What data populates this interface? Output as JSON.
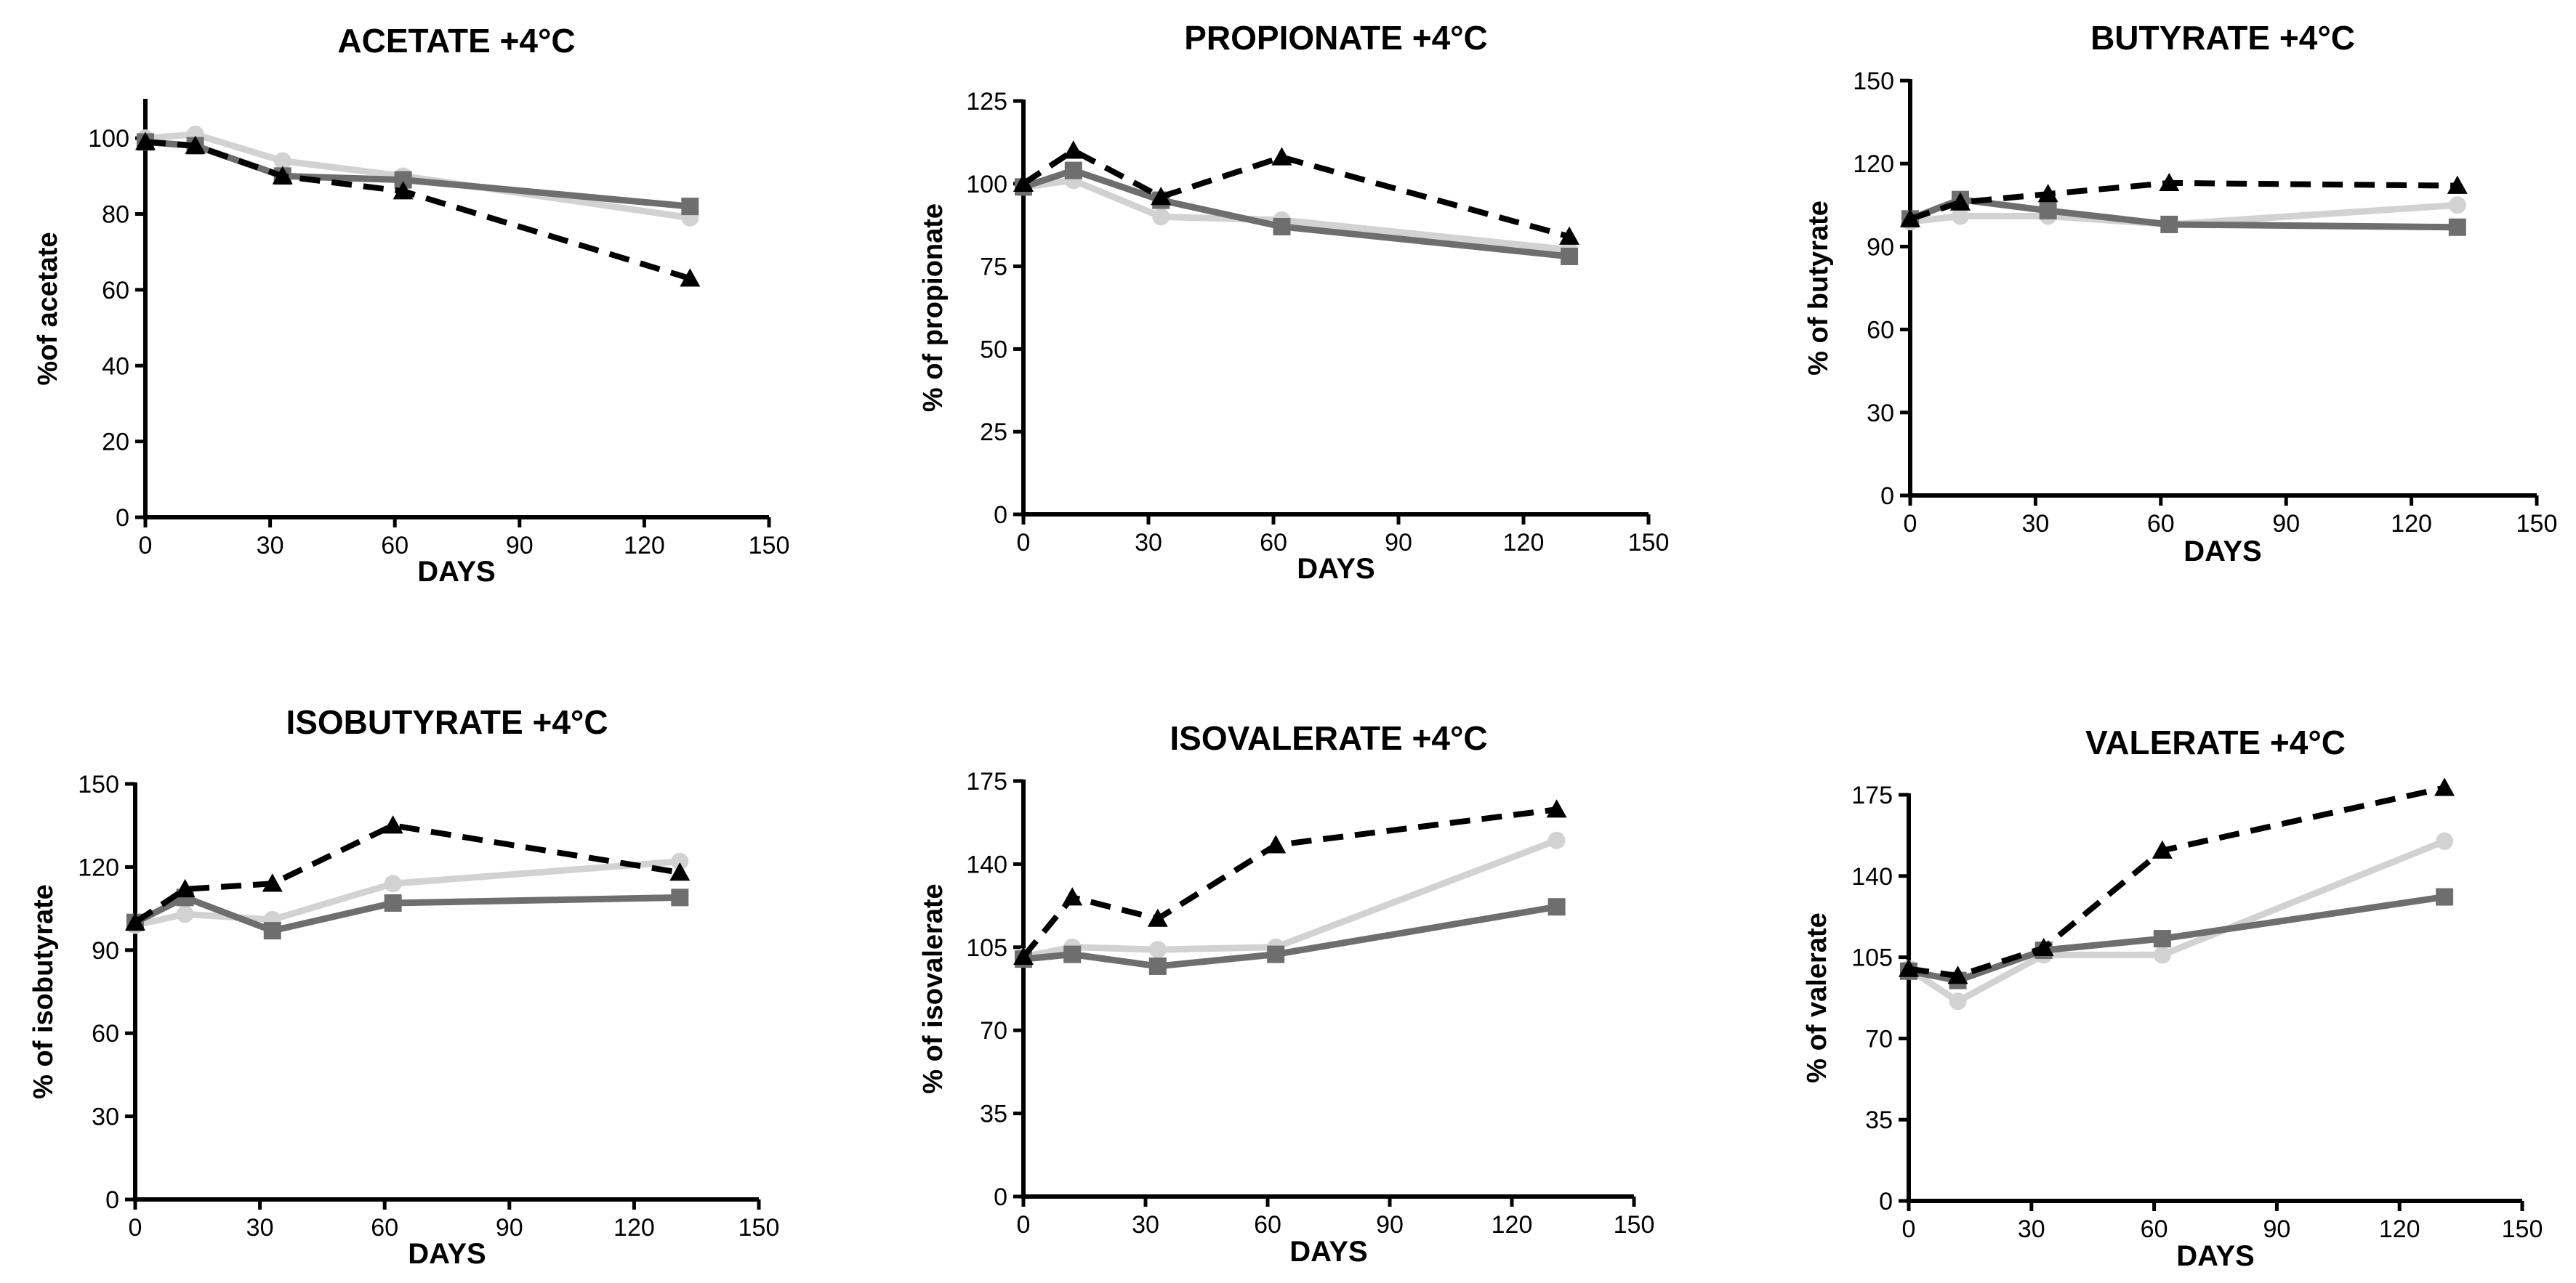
{
  "chart_data": [
    {
      "type": "line",
      "title": "ACETATE +4°C",
      "xlabel": "DAYS",
      "ylabel": "%of acetate",
      "xlim": [
        0,
        150
      ],
      "xticks": [
        0,
        30,
        60,
        90,
        120,
        150
      ],
      "ylim": [
        0,
        110
      ],
      "yticks": [
        0,
        20,
        40,
        60,
        80,
        100
      ],
      "series": [
        {
          "name": "triangle-dashed",
          "color": "#000000",
          "x": [
            0,
            12,
            33,
            62,
            131
          ],
          "values": [
            99,
            98,
            90,
            86,
            63
          ]
        },
        {
          "name": "square-dark-gray",
          "color": "#6e6e6e",
          "x": [
            0,
            12,
            33,
            62,
            131
          ],
          "values": [
            99,
            98,
            90,
            89,
            82
          ]
        },
        {
          "name": "circle-light-gray",
          "color": "#d2d2d2",
          "x": [
            0,
            12,
            33,
            62,
            131
          ],
          "values": [
            100,
            101,
            94,
            90,
            79
          ]
        }
      ]
    },
    {
      "type": "line",
      "title": "PROPIONATE +4°C",
      "xlabel": "DAYS",
      "ylabel": "% of propionate",
      "xlim": [
        0,
        150
      ],
      "xticks": [
        0,
        30,
        60,
        90,
        120,
        150
      ],
      "ylim": [
        0,
        125
      ],
      "yticks": [
        0,
        25,
        50,
        75,
        100,
        125
      ],
      "series": [
        {
          "name": "triangle-dashed",
          "color": "#000000",
          "x": [
            0,
            12,
            33,
            62,
            131
          ],
          "values": [
            100,
            110,
            96,
            108,
            84
          ]
        },
        {
          "name": "square-dark-gray",
          "color": "#6e6e6e",
          "x": [
            0,
            12,
            33,
            62,
            131
          ],
          "values": [
            99,
            104,
            95,
            87,
            78
          ]
        },
        {
          "name": "circle-light-gray",
          "color": "#d2d2d2",
          "x": [
            0,
            12,
            33,
            62,
            131
          ],
          "values": [
            99,
            101,
            90,
            89,
            80
          ]
        }
      ]
    },
    {
      "type": "line",
      "title": "BUTYRATE +4°C",
      "xlabel": "DAYS",
      "ylabel": "% of butyrate",
      "xlim": [
        0,
        150
      ],
      "xticks": [
        0,
        30,
        60,
        90,
        120,
        150
      ],
      "ylim": [
        0,
        150
      ],
      "yticks": [
        0,
        30,
        60,
        90,
        120,
        150
      ],
      "series": [
        {
          "name": "triangle-dashed",
          "color": "#000000",
          "x": [
            0,
            12,
            33,
            62,
            131
          ],
          "values": [
            100,
            106,
            109,
            113,
            112
          ]
        },
        {
          "name": "square-dark-gray",
          "color": "#6e6e6e",
          "x": [
            0,
            12,
            33,
            62,
            131
          ],
          "values": [
            100,
            107,
            103,
            98,
            97
          ]
        },
        {
          "name": "circle-light-gray",
          "color": "#d2d2d2",
          "x": [
            0,
            12,
            33,
            62,
            131
          ],
          "values": [
            99,
            101,
            101,
            98,
            105
          ]
        }
      ]
    },
    {
      "type": "line",
      "title": "ISOBUTYRATE +4°C",
      "xlabel": "DAYS",
      "ylabel": "% of isobutyrate",
      "xlim": [
        0,
        150
      ],
      "xticks": [
        0,
        30,
        60,
        90,
        120,
        150
      ],
      "ylim": [
        0,
        150
      ],
      "yticks": [
        0,
        30,
        60,
        90,
        120,
        150
      ],
      "series": [
        {
          "name": "triangle-dashed",
          "color": "#000000",
          "x": [
            0,
            12,
            33,
            62,
            131
          ],
          "values": [
            100,
            112,
            114,
            135,
            118
          ]
        },
        {
          "name": "square-dark-gray",
          "color": "#6e6e6e",
          "x": [
            0,
            12,
            33,
            62,
            131
          ],
          "values": [
            100,
            109,
            97,
            107,
            109
          ]
        },
        {
          "name": "circle-light-gray",
          "color": "#d2d2d2",
          "x": [
            0,
            12,
            33,
            62,
            131
          ],
          "values": [
            99,
            103,
            101,
            114,
            122
          ]
        }
      ]
    },
    {
      "type": "line",
      "title": "ISOVALERATE +4°C",
      "xlabel": "DAYS",
      "ylabel": "% of isovalerate",
      "xlim": [
        0,
        150
      ],
      "xticks": [
        0,
        30,
        60,
        90,
        120,
        150
      ],
      "ylim": [
        0,
        175
      ],
      "yticks": [
        0,
        35,
        70,
        105,
        140,
        175
      ],
      "series": [
        {
          "name": "triangle-dashed",
          "color": "#000000",
          "x": [
            0,
            12,
            33,
            62,
            131
          ],
          "values": [
            101,
            126,
            117,
            148,
            163
          ]
        },
        {
          "name": "square-dark-gray",
          "color": "#6e6e6e",
          "x": [
            0,
            12,
            33,
            62,
            131
          ],
          "values": [
            100,
            102,
            97,
            102,
            122
          ]
        },
        {
          "name": "circle-light-gray",
          "color": "#d2d2d2",
          "x": [
            0,
            12,
            33,
            62,
            131
          ],
          "values": [
            101,
            105,
            104,
            105,
            150
          ]
        }
      ]
    },
    {
      "type": "line",
      "title": "VALERATE +4°C",
      "xlabel": "DAYS",
      "ylabel": "% of valerate",
      "xlim": [
        0,
        150
      ],
      "xticks": [
        0,
        30,
        60,
        90,
        120,
        150
      ],
      "ylim": [
        0,
        175
      ],
      "yticks": [
        0,
        35,
        70,
        105,
        140,
        175
      ],
      "series": [
        {
          "name": "triangle-dashed",
          "color": "#000000",
          "x": [
            0,
            12,
            33,
            62,
            131
          ],
          "values": [
            100,
            97,
            109,
            151,
            178
          ]
        },
        {
          "name": "square-dark-gray",
          "color": "#6e6e6e",
          "x": [
            0,
            12,
            33,
            62,
            131
          ],
          "values": [
            99,
            95,
            108,
            113,
            131
          ]
        },
        {
          "name": "circle-light-gray",
          "color": "#d2d2d2",
          "x": [
            0,
            12,
            33,
            62,
            131
          ],
          "values": [
            100,
            86,
            106,
            106,
            155
          ]
        }
      ]
    }
  ]
}
